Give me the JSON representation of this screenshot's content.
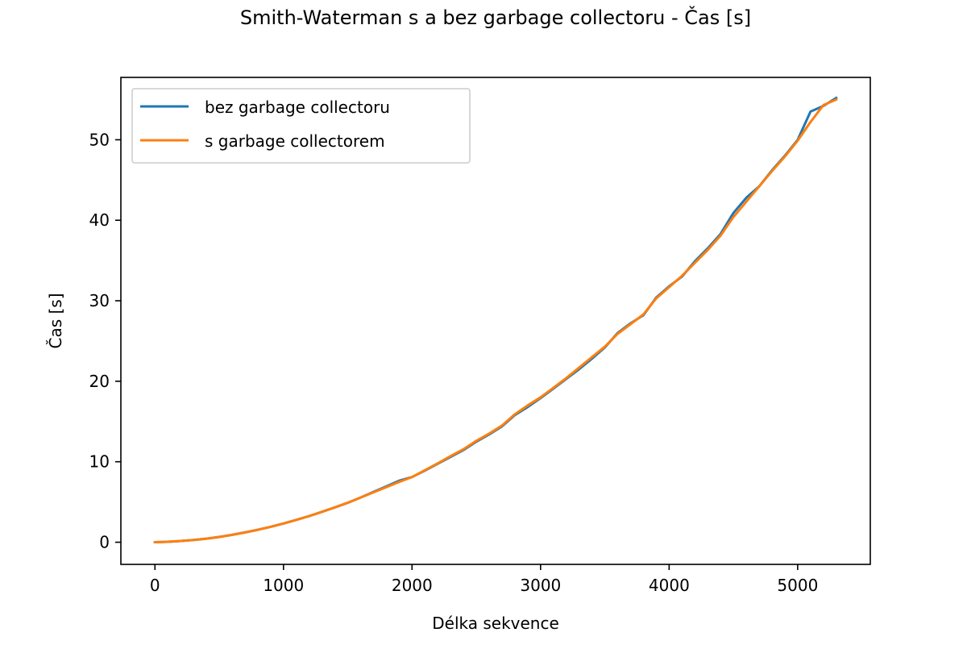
{
  "chart_data": {
    "type": "line",
    "title": "Smith-Waterman s a bez garbage collectoru - Čas [s]",
    "xlabel": "Délka sekvence",
    "ylabel": "Čas [s]",
    "xlim": [
      -265,
      5565
    ],
    "ylim": [
      -2.75,
      57.75
    ],
    "xticks": [
      0,
      1000,
      2000,
      3000,
      4000,
      5000
    ],
    "yticks": [
      0,
      10,
      20,
      30,
      40,
      50
    ],
    "grid": false,
    "legend": "upper left",
    "x": [
      0,
      100,
      200,
      300,
      400,
      500,
      600,
      700,
      800,
      900,
      1000,
      1100,
      1200,
      1300,
      1400,
      1500,
      1600,
      1700,
      1800,
      1900,
      2000,
      2100,
      2200,
      2300,
      2400,
      2500,
      2600,
      2700,
      2800,
      2900,
      3000,
      3100,
      3200,
      3300,
      3400,
      3500,
      3600,
      3700,
      3800,
      3900,
      4000,
      4100,
      4200,
      4300,
      4400,
      4500,
      4600,
      4700,
      4800,
      4900,
      5000,
      5100,
      5200,
      5300
    ],
    "series": [
      {
        "name": "bez garbage collectoru",
        "color": "#1f77b4",
        "values": [
          0.0,
          0.05,
          0.15,
          0.28,
          0.45,
          0.66,
          0.92,
          1.22,
          1.55,
          1.92,
          2.33,
          2.78,
          3.25,
          3.78,
          4.33,
          4.9,
          5.55,
          6.25,
          6.95,
          7.65,
          8.1,
          8.9,
          9.75,
          10.6,
          11.45,
          12.5,
          13.4,
          14.4,
          15.8,
          16.8,
          17.9,
          19.1,
          20.3,
          21.5,
          22.8,
          24.2,
          26.0,
          27.2,
          28.2,
          30.4,
          31.8,
          33.0,
          34.9,
          36.5,
          38.3,
          40.9,
          42.8,
          44.2,
          46.2,
          48.0,
          50.0,
          53.5,
          54.2,
          55.2
        ]
      },
      {
        "name": "s garbage collectorem",
        "color": "#ff7f0e",
        "values": [
          0.0,
          0.05,
          0.15,
          0.28,
          0.45,
          0.66,
          0.92,
          1.22,
          1.55,
          1.92,
          2.33,
          2.78,
          3.25,
          3.78,
          4.33,
          4.9,
          5.55,
          6.2,
          6.85,
          7.5,
          8.1,
          8.95,
          9.8,
          10.7,
          11.55,
          12.6,
          13.5,
          14.5,
          15.9,
          17.0,
          18.0,
          19.2,
          20.4,
          21.7,
          23.0,
          24.3,
          25.9,
          27.1,
          28.3,
          30.3,
          31.7,
          33.1,
          34.7,
          36.3,
          38.1,
          40.4,
          42.3,
          44.2,
          46.1,
          47.9,
          49.9,
          52.2,
          54.3,
          55.0
        ]
      }
    ]
  }
}
